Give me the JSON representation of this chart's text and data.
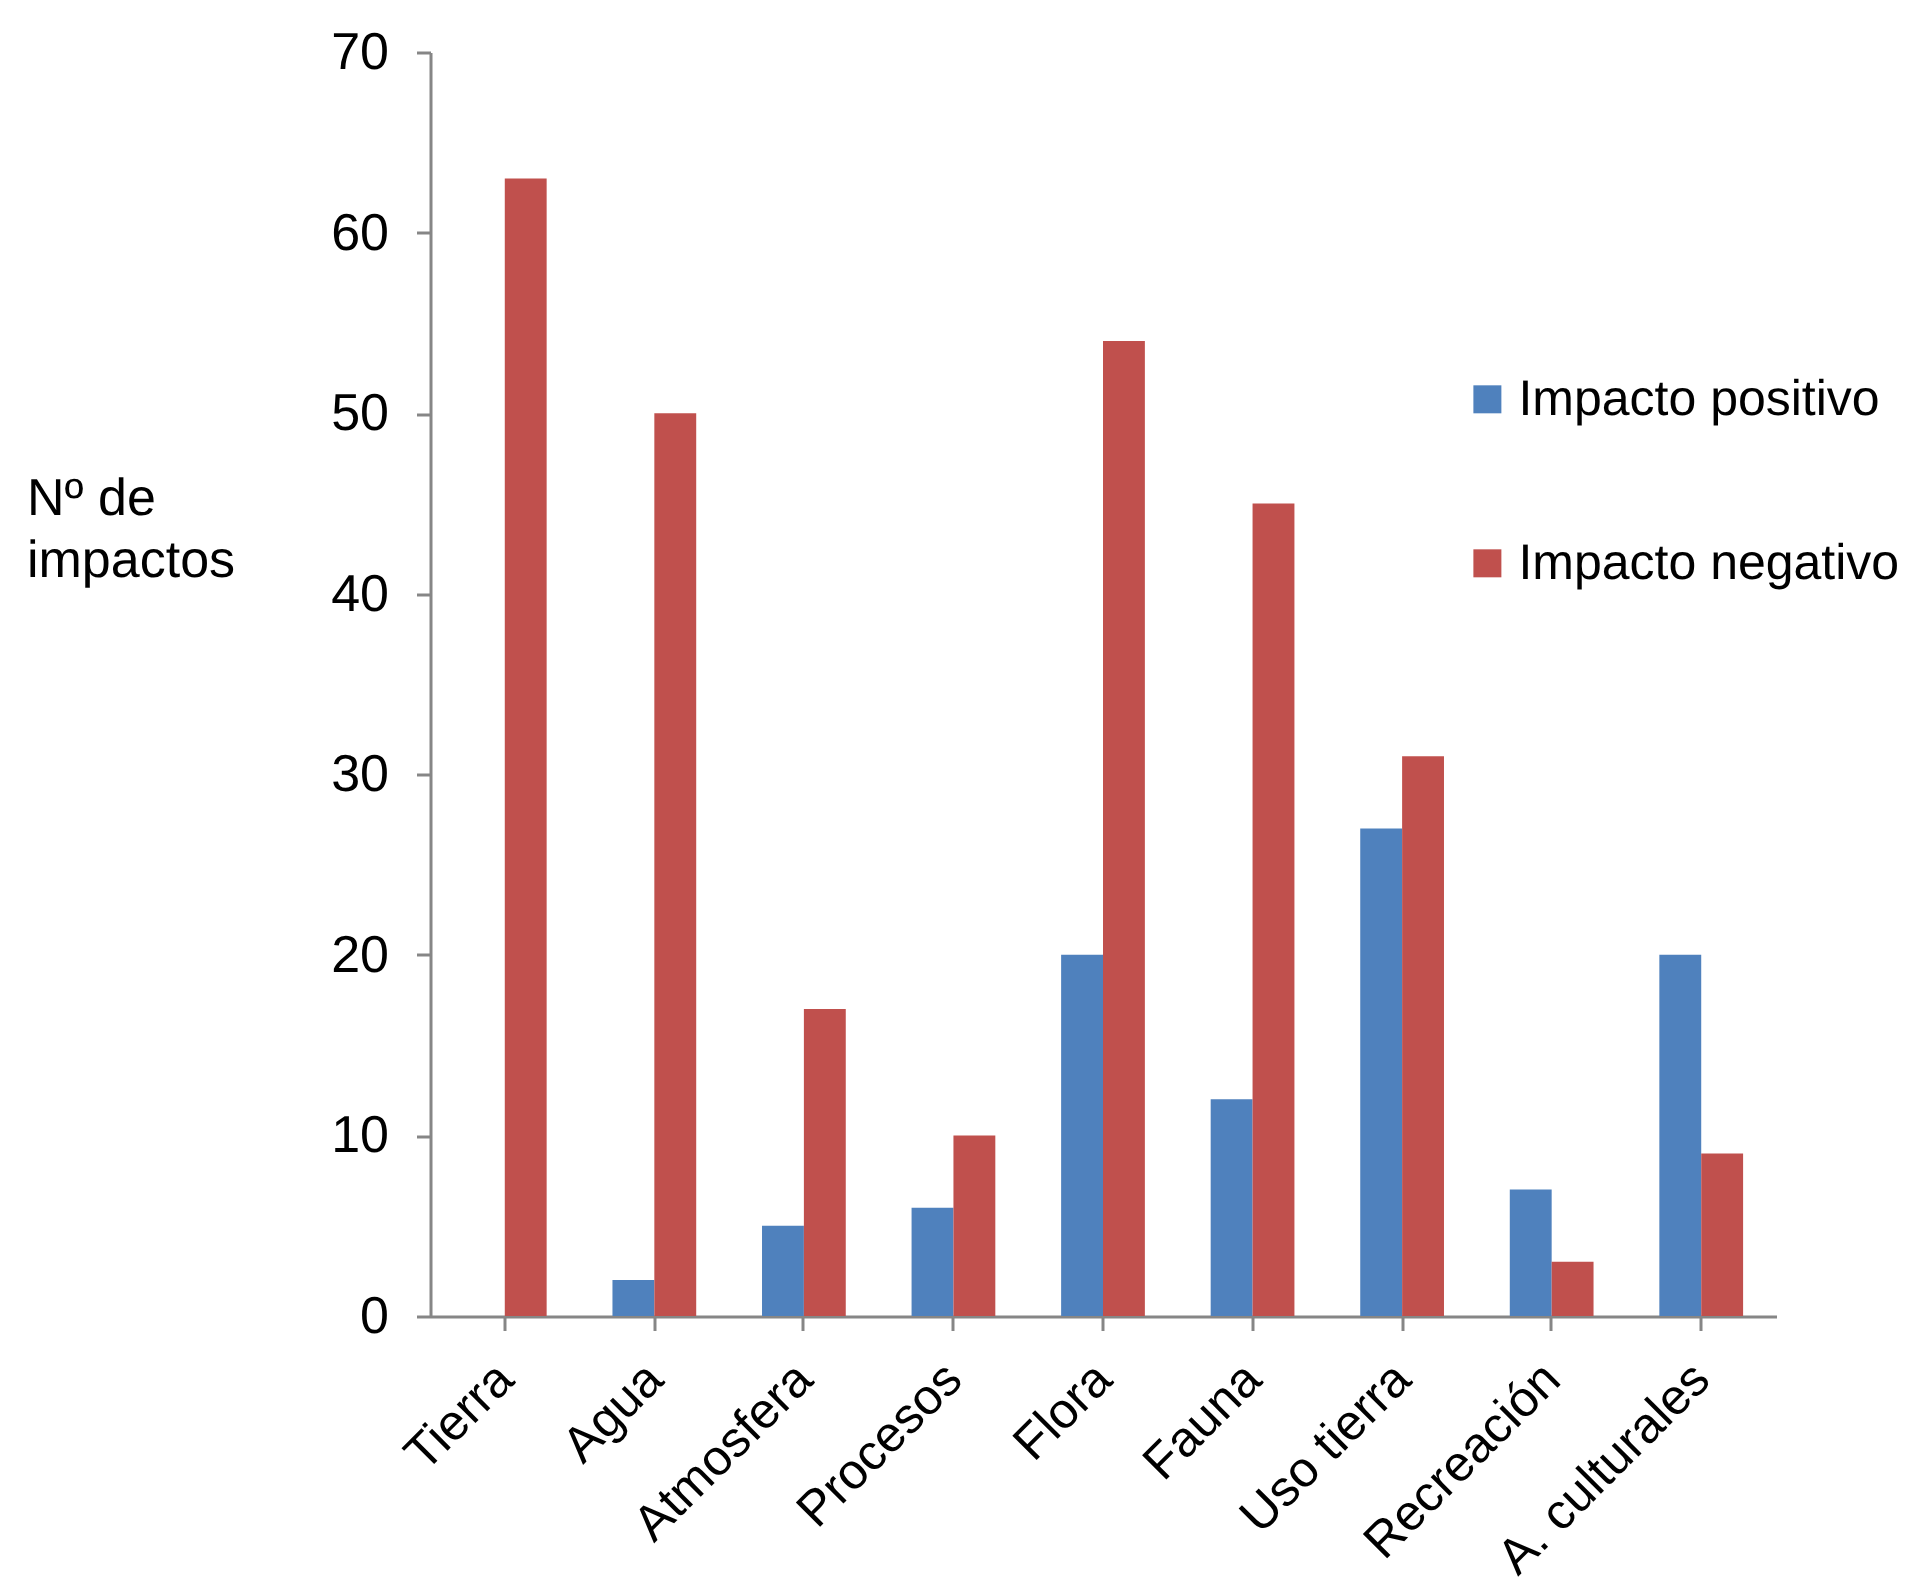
{
  "chart_data": {
    "type": "bar",
    "ylabel": "Nº de impactos",
    "categories": [
      "Tierra",
      "Agua",
      "Atmosfera",
      "Procesos",
      "Flora",
      "Fauna",
      "Uso tierra",
      "Recreación",
      "A. culturales"
    ],
    "series": [
      {
        "name": "Impacto positivo",
        "color": "#4f81bd",
        "values": [
          null,
          2,
          5,
          6,
          20,
          12,
          27,
          7,
          20
        ]
      },
      {
        "name": "Impacto negativo",
        "color": "#c0504d",
        "values": [
          63,
          50,
          17,
          10,
          54,
          45,
          31,
          3,
          9
        ]
      }
    ],
    "ylim": [
      0,
      70
    ],
    "yticks": [
      0,
      10,
      20,
      30,
      40,
      50,
      60,
      70
    ],
    "legend": "right"
  }
}
